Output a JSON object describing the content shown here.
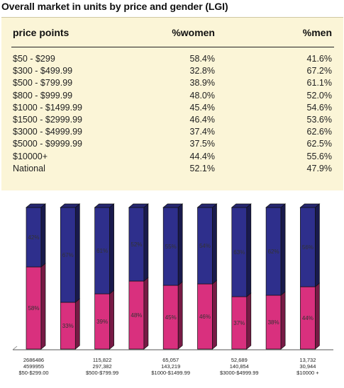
{
  "title": "Overall market in units by price and gender (LGI)",
  "table": {
    "headers": [
      "price points",
      "%women",
      "%men"
    ],
    "rows": [
      {
        "label": "$50 - $299",
        "women": "58.4%",
        "men": "41.6%"
      },
      {
        "label": "$300 - $499.99",
        "women": "32.8%",
        "men": "67.2%"
      },
      {
        "label": "$500 - $799.99",
        "women": "38.9%",
        "men": "61.1%"
      },
      {
        "label": "$800 - $999.99",
        "women": "48.0%",
        "men": "52.0%"
      },
      {
        "label": "$1000 - $1499.99",
        "women": "45.4%",
        "men": "54.6%"
      },
      {
        "label": "$1500 - $2999.99",
        "women": "46.4%",
        "men": "53.6%"
      },
      {
        "label": "$3000 - $4999.99",
        "women": "37.4%",
        "men": "62.6%"
      },
      {
        "label": "$5000 - $9999.99",
        "women": "37.5%",
        "men": "62.5%"
      },
      {
        "label": "$10000+",
        "women": "44.4%",
        "men": "55.6%"
      },
      {
        "label": "National",
        "women": "52.1%",
        "men": "47.9%"
      }
    ]
  },
  "chart_data": {
    "type": "bar",
    "stacked": true,
    "percent_stacked": true,
    "categories": [
      [
        "2686486",
        "4599955",
        "$50-$299.00"
      ],
      [],
      [
        "115,822",
        "297,382",
        "$500-$799.99"
      ],
      [],
      [
        "65,057",
        "143,219",
        "$1000-$1499.99"
      ],
      [],
      [
        "52,689",
        "140,854",
        "$3000-$4999.99"
      ],
      [],
      [
        "13,732",
        "30,944",
        "$10000 +"
      ]
    ],
    "series": [
      {
        "values": [
          58,
          33,
          39,
          48,
          45,
          46,
          37,
          38,
          44
        ],
        "color": "#d9307e",
        "labels": [
          "58%",
          "33%",
          "39%",
          "48%",
          "45%",
          "46%",
          "37%",
          "38%",
          "44%"
        ]
      },
      {
        "values": [
          42,
          67,
          61,
          52,
          55,
          54,
          63,
          62,
          56
        ],
        "color": "#2e2f8c",
        "labels": [
          "42%",
          "67%",
          "61%",
          "52%",
          "55%",
          "54%",
          "63%",
          "62%",
          "56%"
        ]
      }
    ],
    "ylim": [
      0,
      100
    ],
    "legend": "none",
    "grid": false
  }
}
